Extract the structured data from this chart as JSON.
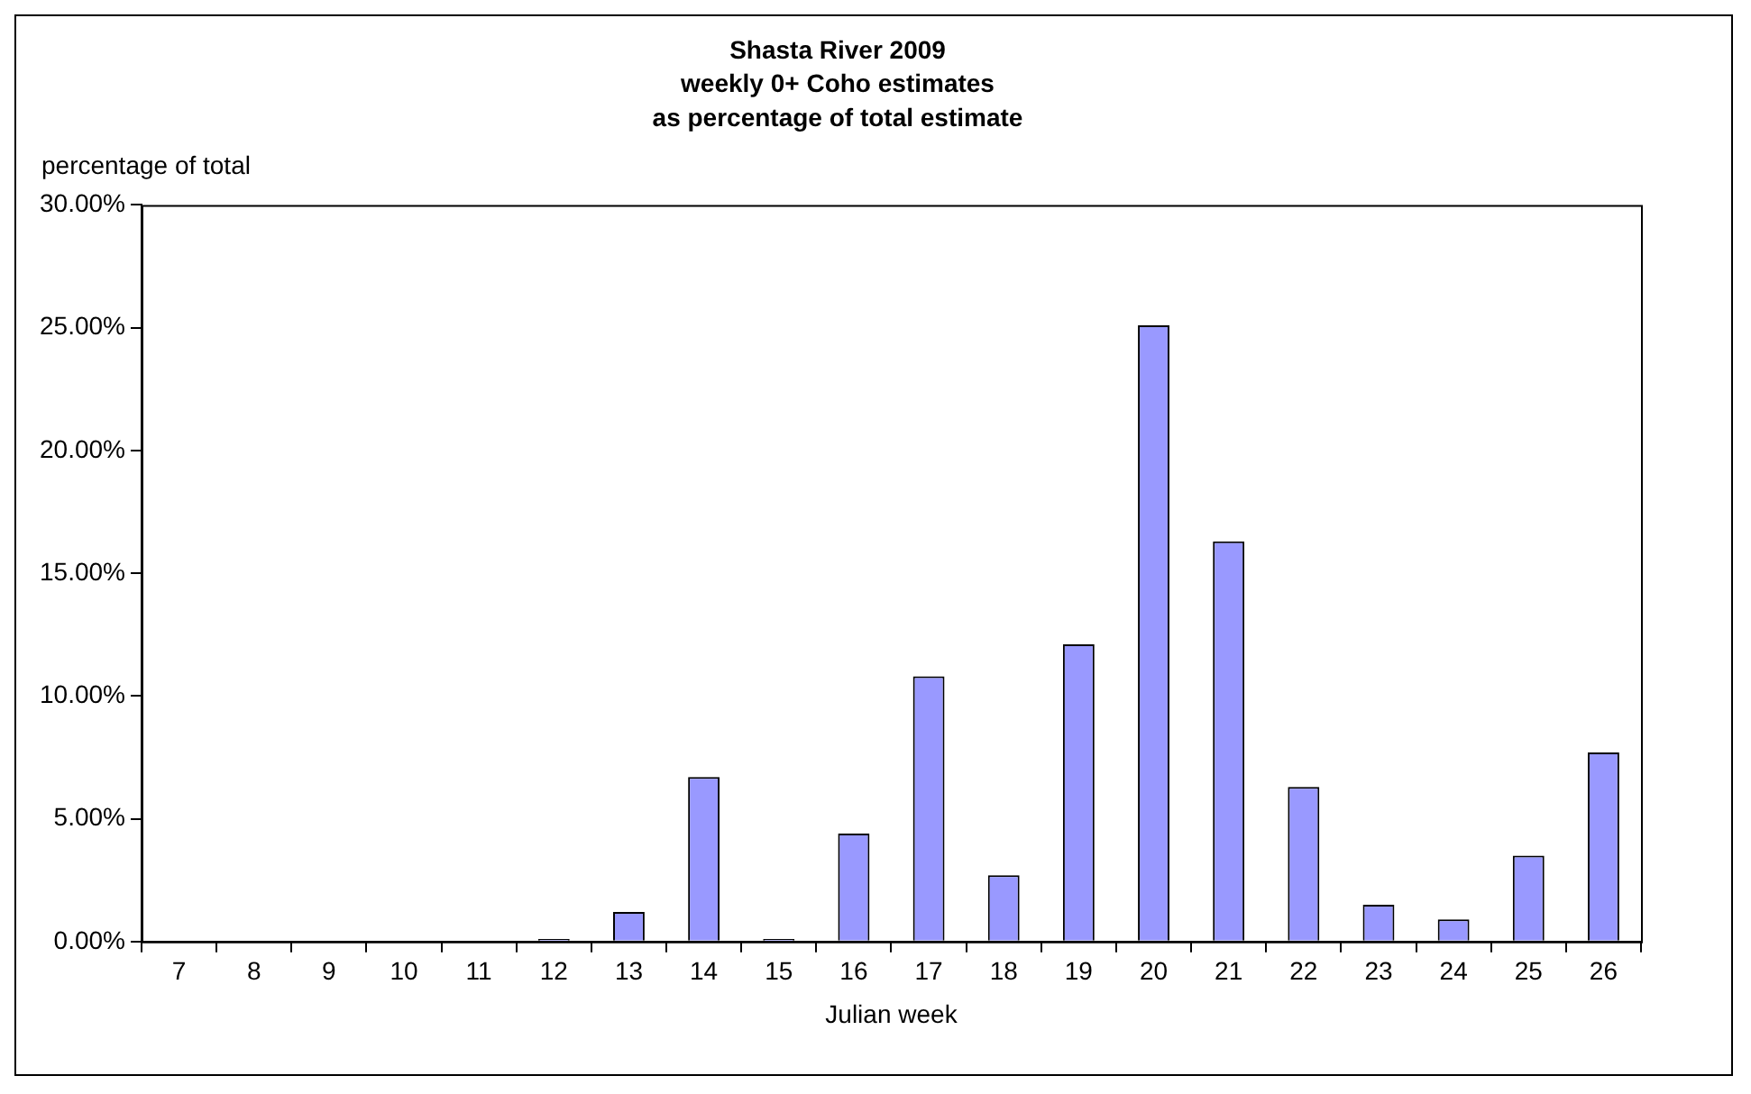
{
  "chart_data": {
    "type": "bar",
    "title": "Shasta River 2009\nweekly 0+ Coho estimates\nas percentage of total estimate",
    "xlabel": "Julian week",
    "ylabel": "percentage of total",
    "categories": [
      "7",
      "8",
      "9",
      "10",
      "11",
      "12",
      "13",
      "14",
      "15",
      "16",
      "17",
      "18",
      "19",
      "20",
      "21",
      "22",
      "23",
      "24",
      "25",
      "26"
    ],
    "values": [
      0,
      0,
      0,
      0,
      0,
      0.1,
      1.2,
      6.7,
      0.1,
      4.4,
      10.8,
      2.7,
      12.1,
      25.1,
      16.3,
      6.3,
      1.5,
      0.9,
      3.5,
      7.7
    ],
    "color": "#9999ff",
    "ylim": [
      0,
      30
    ],
    "yticks": [
      {
        "value": 0,
        "label": "0.00%"
      },
      {
        "value": 5,
        "label": "5.00%"
      },
      {
        "value": 10,
        "label": "10.00%"
      },
      {
        "value": 15,
        "label": "15.00%"
      },
      {
        "value": 20,
        "label": "20.00%"
      },
      {
        "value": 25,
        "label": "25.00%"
      },
      {
        "value": 30,
        "label": "30.00%"
      }
    ],
    "legend": false
  }
}
